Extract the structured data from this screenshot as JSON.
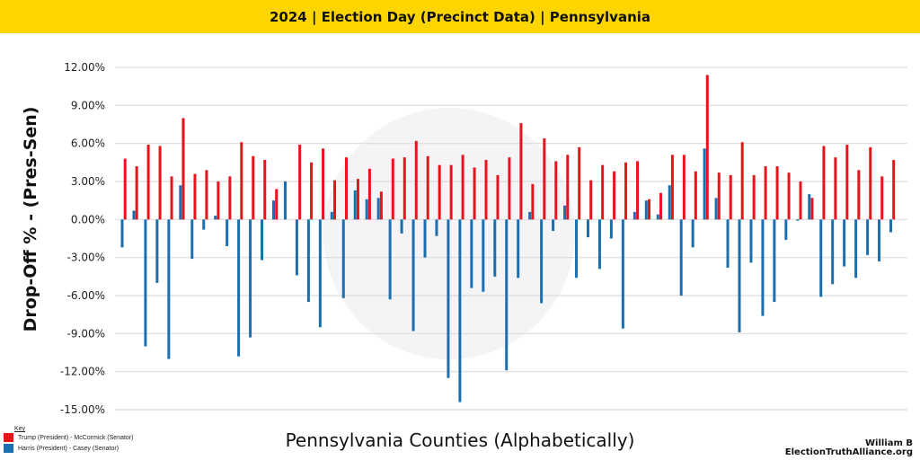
{
  "header": {
    "title": "2024 | Election Day (Precinct Data) | Pennsylvania"
  },
  "watermark": "ELECTION TRUTH ALLIANCE",
  "legend": {
    "title": "Key",
    "items": [
      {
        "label": "Trump (President) - McCormick (Senator)",
        "color": "#E8141B"
      },
      {
        "label": "Harris (President) - Casey (Senator)",
        "color": "#1A6FB0"
      }
    ]
  },
  "credit": {
    "author": "William B",
    "site": "ElectionTruthAlliance.org"
  },
  "chart_data": {
    "type": "bar",
    "title": "2024 | Election Day (Precinct Data) | Pennsylvania",
    "xlabel": "Pennsylvania Counties (Alphabetically)",
    "ylabel": "Drop-Off % - (Pres-Sen)",
    "ylim": [
      -15,
      12
    ],
    "yticks": [
      12,
      9,
      6,
      3,
      0,
      -3,
      -6,
      -9,
      -12,
      -15
    ],
    "ytick_labels": [
      "12.00%",
      "9.00%",
      "6.00%",
      "3.00%",
      "0.00%",
      "-3.00%",
      "-6.00%",
      "-9.00%",
      "-12.00%",
      "-15.00%"
    ],
    "grid": true,
    "legend_position": "bottom-left",
    "categories_count": 67,
    "series": [
      {
        "name": "Harris (President) - Casey (Senator)",
        "color": "#1A6FB0",
        "values": [
          -2.2,
          0.7,
          -10.0,
          -5.0,
          -11.0,
          2.7,
          -3.1,
          -0.8,
          0.3,
          -2.1,
          -10.8,
          -9.3,
          -3.2,
          1.5,
          3.0,
          -4.4,
          -6.5,
          -8.5,
          0.6,
          -6.2,
          2.3,
          1.6,
          1.7,
          -6.3,
          -1.1,
          -8.8,
          -3.0,
          -1.3,
          -12.5,
          -14.4,
          -5.4,
          -5.7,
          -4.5,
          -11.9,
          -4.6,
          0.6,
          -6.6,
          -0.9,
          1.1,
          -4.6,
          -1.4,
          -3.9,
          -1.5,
          -8.6,
          0.6,
          1.5,
          0.4,
          2.7,
          -6.0,
          -2.2,
          5.6,
          1.7,
          -3.8,
          -8.9,
          -3.4,
          -7.6,
          -6.5,
          -1.6,
          -0.1,
          2.0,
          -6.1,
          -5.1,
          -3.7,
          -4.6,
          -2.8,
          -3.3,
          -1.0
        ]
      },
      {
        "name": "Trump (President) - McCormick (Senator)",
        "color": "#E8141B",
        "values": [
          4.8,
          4.2,
          5.9,
          5.8,
          3.4,
          8.0,
          3.6,
          3.9,
          3.0,
          3.4,
          6.1,
          5.0,
          4.7,
          2.4,
          0.0,
          5.9,
          4.5,
          5.6,
          3.1,
          4.9,
          3.2,
          4.0,
          2.2,
          4.8,
          4.9,
          6.2,
          5.0,
          4.3,
          4.3,
          5.1,
          4.1,
          4.7,
          3.5,
          4.9,
          7.6,
          2.8,
          6.4,
          4.6,
          5.1,
          5.7,
          3.1,
          4.3,
          3.8,
          4.5,
          4.6,
          1.6,
          2.1,
          5.1,
          5.1,
          3.8,
          11.4,
          3.7,
          3.5,
          6.1,
          3.5,
          4.2,
          4.2,
          3.7,
          3.0,
          1.7,
          5.8,
          4.9,
          5.9,
          3.9,
          5.7,
          3.4,
          4.7
        ]
      }
    ]
  }
}
